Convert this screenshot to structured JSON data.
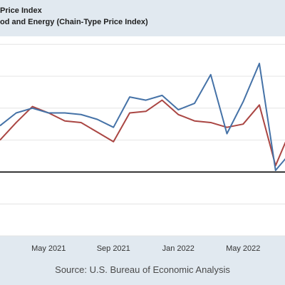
{
  "chart_data": {
    "type": "line",
    "title": "Price Index",
    "subtitle": "od and Energy (Chain-Type Price Index)",
    "x_ticks": [
      "May 2021",
      "Sep 2021",
      "Jan 2022",
      "May 2022"
    ],
    "x": [
      "2021-02",
      "2021-03",
      "2021-04",
      "2021-05",
      "2021-06",
      "2021-07",
      "2021-08",
      "2021-09",
      "2021-10",
      "2021-11",
      "2021-12",
      "2022-01",
      "2022-02",
      "2022-03",
      "2022-04",
      "2022-05",
      "2022-06",
      "2022-07",
      "2022-08"
    ],
    "series": [
      {
        "values": [
          0.29,
          0.37,
          0.4,
          0.37,
          0.37,
          0.36,
          0.33,
          0.28,
          0.47,
          0.45,
          0.48,
          0.39,
          0.43,
          0.61,
          0.24,
          0.44,
          0.68,
          0.01,
          0.13
        ],
        "color": "#4572a7"
      },
      {
        "values": [
          0.2,
          0.31,
          0.41,
          0.37,
          0.32,
          0.31,
          0.25,
          0.19,
          0.37,
          0.38,
          0.45,
          0.36,
          0.32,
          0.31,
          0.28,
          0.3,
          0.42,
          0.04,
          0.28
        ],
        "color": "#aa4643"
      }
    ],
    "ylim": [
      -0.4,
      0.85
    ],
    "zero_line": true,
    "grid": true
  },
  "source": "Source: U.S. Bureau of Economic Analysis"
}
